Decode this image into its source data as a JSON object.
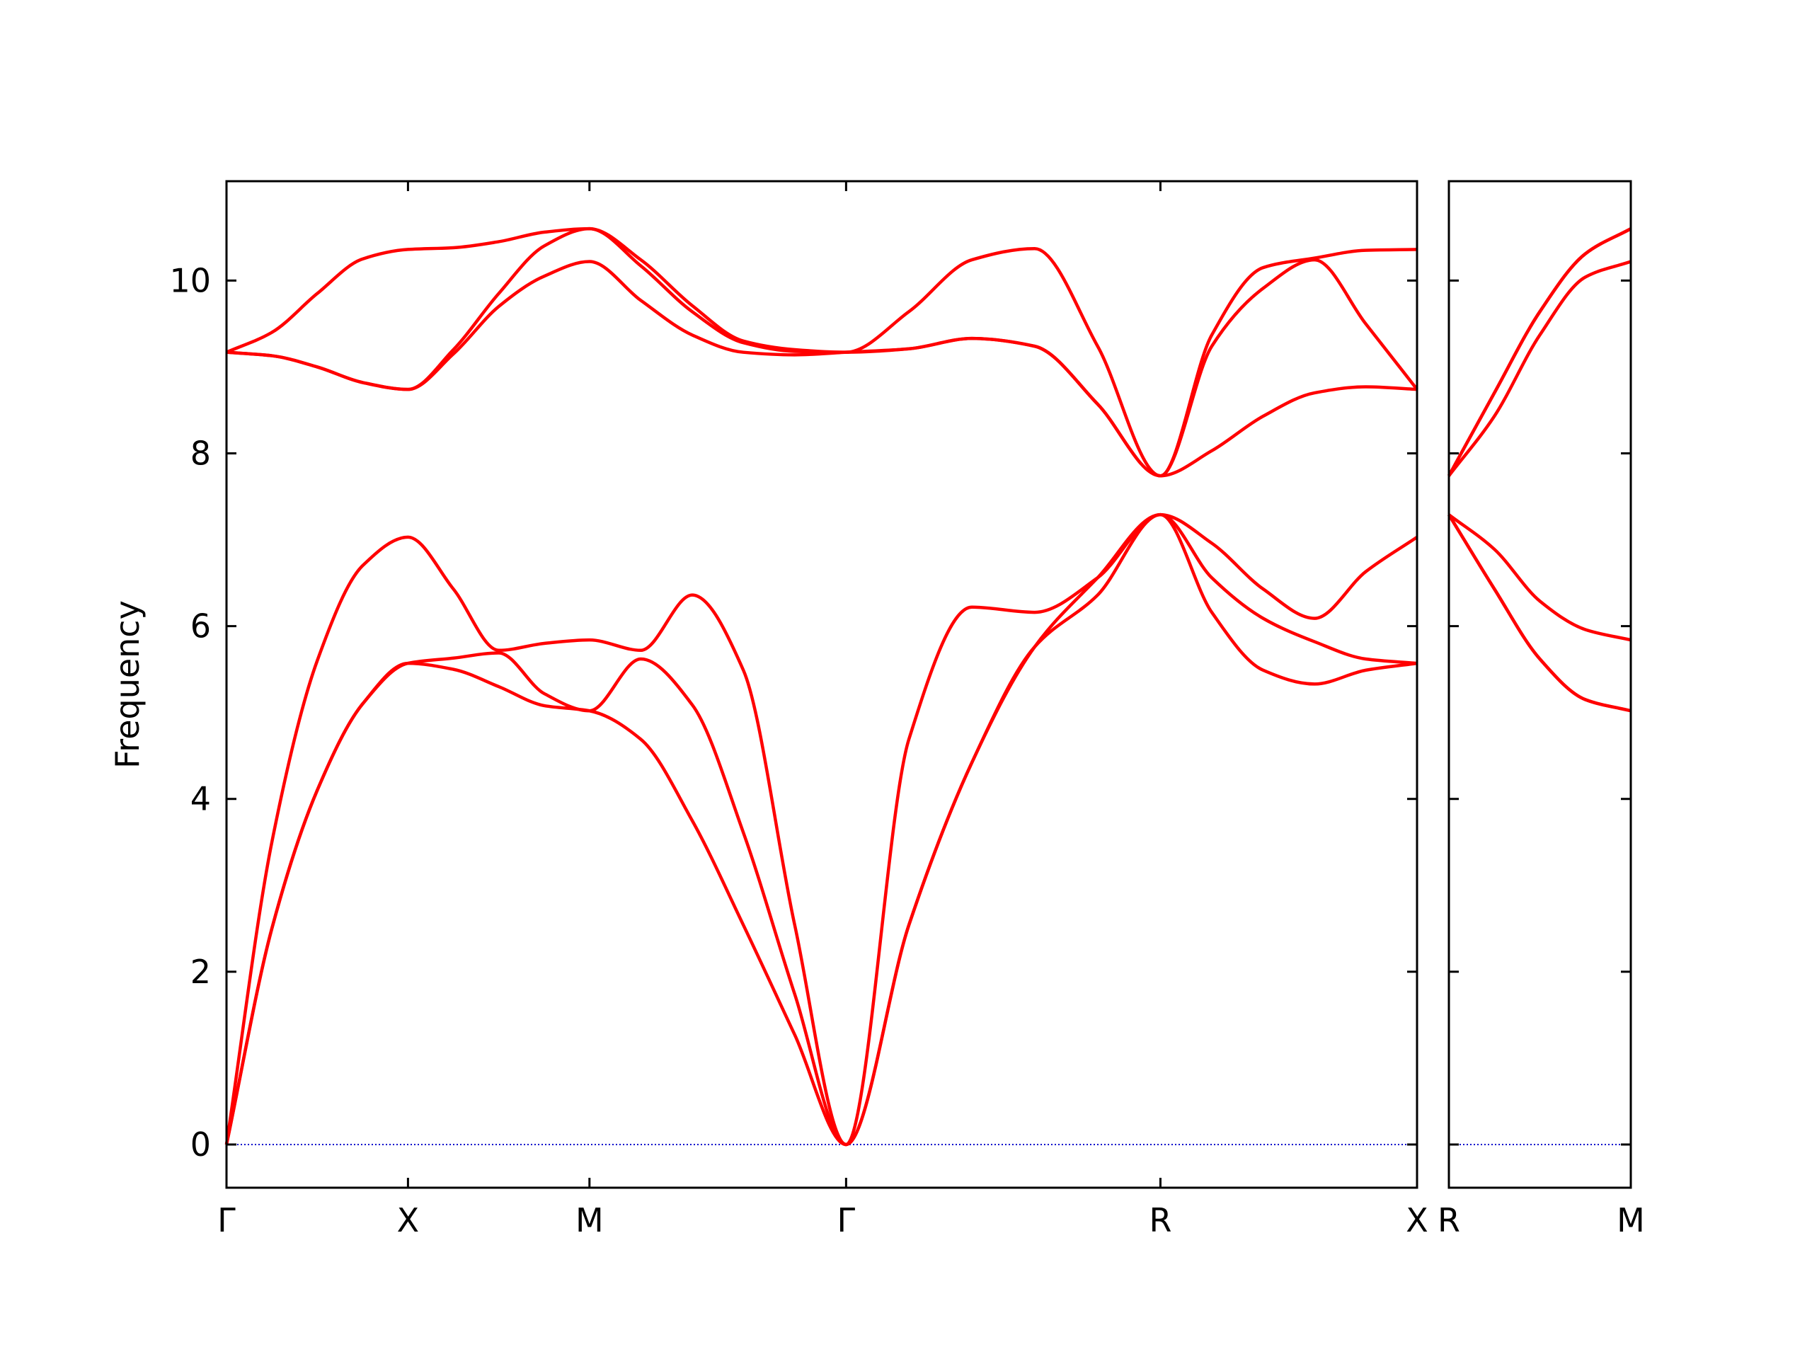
{
  "chart_data": [
    {
      "type": "line",
      "y_label": "Frequency",
      "color": "#ff0000",
      "hline": {
        "value": 0,
        "color": "#0000cc"
      },
      "x": [
        0,
        0.25,
        0.5,
        0.75,
        1,
        1.25,
        1.5,
        1.75,
        2,
        2.283,
        2.566,
        2.848,
        3.131,
        3.414,
        3.76,
        4.107,
        4.453,
        4.8,
        5.146,
        5.429,
        5.712,
        5.995,
        6.277,
        6.56
      ],
      "series": [
        {
          "values": [
            0,
            2.5,
            4.1,
            5.1,
            5.57,
            5.5,
            5.3,
            5.08,
            5.02,
            4.69,
            3.75,
            2.54,
            1.27,
            0,
            2.54,
            4.42,
            5.76,
            6.36,
            7.29,
            6.16,
            5.49,
            5.33,
            5.49,
            5.57
          ]
        },
        {
          "values": [
            0,
            2.5,
            4.1,
            5.1,
            5.57,
            5.63,
            5.69,
            5.22,
            5.02,
            5.62,
            5.09,
            3.61,
            1.74,
            0,
            2.54,
            4.42,
            5.76,
            6.56,
            7.29,
            6.56,
            6.09,
            5.82,
            5.62,
            5.57
          ]
        },
        {
          "values": [
            0,
            3.5,
            5.6,
            6.7,
            7.03,
            6.43,
            5.72,
            5.8,
            5.84,
            5.72,
            6.36,
            5.49,
            2.54,
            0,
            4.69,
            6.22,
            6.16,
            6.56,
            7.29,
            6.96,
            6.43,
            6.09,
            6.63,
            7.03
          ]
        },
        {
          "values": [
            9.17,
            9.13,
            9.0,
            8.82,
            8.74,
            9.15,
            9.7,
            10.05,
            10.22,
            9.77,
            9.37,
            9.17,
            9.14,
            9.17,
            9.21,
            9.33,
            9.24,
            8.57,
            7.74,
            8.03,
            8.43,
            8.7,
            8.77,
            8.74
          ]
        },
        {
          "values": [
            9.17,
            9.13,
            9.0,
            8.82,
            8.74,
            9.2,
            9.85,
            10.4,
            10.6,
            10.17,
            9.64,
            9.28,
            9.18,
            9.17,
            9.21,
            9.33,
            9.24,
            8.57,
            7.74,
            9.24,
            9.91,
            10.24,
            9.5,
            8.74
          ]
        },
        {
          "values": [
            9.17,
            9.4,
            9.85,
            10.25,
            10.36,
            10.38,
            10.45,
            10.56,
            10.6,
            10.24,
            9.71,
            9.3,
            9.2,
            9.17,
            9.64,
            10.24,
            10.37,
            9.24,
            7.74,
            9.37,
            10.15,
            10.26,
            10.35,
            10.36
          ]
        }
      ],
      "xlim": [
        0,
        6.56
      ],
      "ylim": [
        -0.5,
        11.15
      ],
      "xticks": [
        {
          "value": 0,
          "label": "Γ"
        },
        {
          "value": 1,
          "label": "X"
        },
        {
          "value": 2,
          "label": "M"
        },
        {
          "value": 3.414,
          "label": "Γ"
        },
        {
          "value": 5.146,
          "label": "R"
        },
        {
          "value": 6.56,
          "label": "X"
        }
      ],
      "yticks": [
        0,
        2,
        4,
        6,
        8,
        10
      ],
      "show_ytick_labels": true
    },
    {
      "type": "line",
      "color": "#ff0000",
      "hline": {
        "value": 0,
        "color": "#0000cc"
      },
      "x": [
        0,
        0.25,
        0.5,
        0.75,
        1
      ],
      "series": [
        {
          "values": [
            7.29,
            6.43,
            5.62,
            5.15,
            5.02
          ]
        },
        {
          "values": [
            7.29,
            6.43,
            5.62,
            5.15,
            5.02
          ]
        },
        {
          "values": [
            7.29,
            6.89,
            6.29,
            5.96,
            5.84
          ]
        },
        {
          "values": [
            7.74,
            8.43,
            9.37,
            10.04,
            10.22
          ]
        },
        {
          "values": [
            7.74,
            8.7,
            9.64,
            10.31,
            10.6
          ]
        },
        {
          "values": [
            7.74,
            8.7,
            9.64,
            10.31,
            10.6
          ]
        }
      ],
      "xlim": [
        0,
        1
      ],
      "ylim": [
        -0.5,
        11.15
      ],
      "xticks": [
        {
          "value": 0,
          "label": "R"
        },
        {
          "value": 1,
          "label": "M"
        }
      ],
      "yticks": [
        0,
        2,
        4,
        6,
        8,
        10
      ],
      "show_ytick_labels": false
    }
  ]
}
